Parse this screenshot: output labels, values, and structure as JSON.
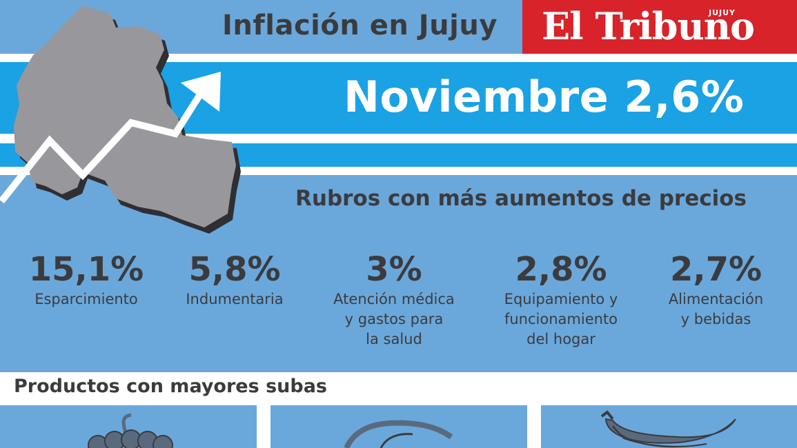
{
  "header": {
    "title": "Inflación en Jujuy",
    "logo": {
      "name": "El Tribuno",
      "region": "JUJUY"
    }
  },
  "headline": "Noviembre 2,6%",
  "rubros": {
    "heading": "Rubros con más aumentos de precios",
    "items": [
      {
        "value": "15,1%",
        "label_lines": [
          "Esparcimiento"
        ]
      },
      {
        "value": "5,8%",
        "label_lines": [
          "Indumentaria"
        ]
      },
      {
        "value": "3%",
        "label_lines": [
          "Atención médica",
          "y gastos para",
          "la salud"
        ]
      },
      {
        "value": "2,8%",
        "label_lines": [
          "Equipamiento y",
          "funcionamiento",
          "del hogar"
        ]
      },
      {
        "value": "2,7%",
        "label_lines": [
          "Alimentación",
          "y bebidas"
        ]
      }
    ]
  },
  "productos": {
    "heading": "Productos con mayores subas",
    "items": [
      {
        "icon": "grapes-icon"
      },
      {
        "icon": "glasses-icon"
      },
      {
        "icon": "bananas-icon"
      }
    ]
  },
  "colors": {
    "background_blue": "#6aa8dc",
    "band_blue": "#1aa2e4",
    "logo_red": "#d8232a",
    "text_dark": "#3b3b3d",
    "map_gray": "#98979c",
    "icon_gray": "#5a6a7e"
  }
}
